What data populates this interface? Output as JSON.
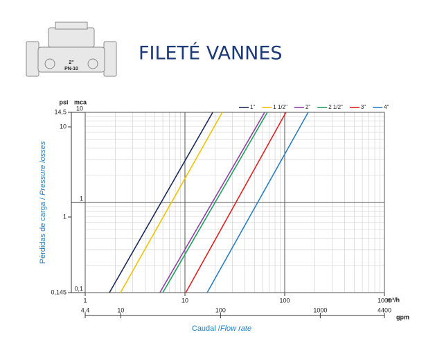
{
  "header": {
    "title": "FILETÉ VANNES",
    "icon_size": "2\"",
    "icon_pressure": "PN-10"
  },
  "chart_data": {
    "type": "line",
    "y_unit": "mca",
    "y2_unit": "psi",
    "x_unit": "m³/h",
    "x2_unit": "gpm",
    "ylabel_es": "Pérdidas de carga /",
    "ylabel_en": "Pressure losses",
    "xlabel_es": "Caudal /",
    "xlabel_en": "Flow rate",
    "xscale": "log",
    "yscale": "log",
    "grid": true,
    "xlim": [
      1,
      1000
    ],
    "xticks": [
      1,
      10,
      100,
      1000
    ],
    "x2lim": [
      4.4,
      4400
    ],
    "x2ticks": [
      {
        "value": 4.4,
        "label": "4,4"
      },
      10,
      100,
      1000,
      4400
    ],
    "ylim": [
      0.1,
      10
    ],
    "yticks": [
      {
        "value": 0.1,
        "label": "0,1"
      },
      1,
      10
    ],
    "y2lim": [
      0.145,
      14.5
    ],
    "y2ticks": [
      {
        "value": 0.145,
        "label": "0,145"
      },
      1,
      10,
      {
        "value": 14.5,
        "label": "14,5"
      }
    ],
    "series": [
      {
        "name": "1\"",
        "color": "#1b2a5c",
        "x": [
          1.75,
          19
        ],
        "values": [
          0.1,
          10
        ]
      },
      {
        "name": "1 1/2\"",
        "color": "#f2c200",
        "x": [
          2.26,
          23.7
        ],
        "values": [
          0.1,
          10
        ]
      },
      {
        "name": "2\"",
        "color": "#8e3fa8",
        "x": [
          5.6,
          63
        ],
        "values": [
          0.1,
          10
        ]
      },
      {
        "name": "2 1/2\"",
        "color": "#1fa060",
        "x": [
          6.0,
          67
        ],
        "values": [
          0.1,
          10
        ]
      },
      {
        "name": "3\"",
        "color": "#e02020",
        "x": [
          10.2,
          103
        ],
        "values": [
          0.1,
          10
        ]
      },
      {
        "name": "4\"",
        "color": "#2a7fc0",
        "x": [
          16.7,
          172
        ],
        "values": [
          0.1,
          10
        ]
      }
    ]
  }
}
